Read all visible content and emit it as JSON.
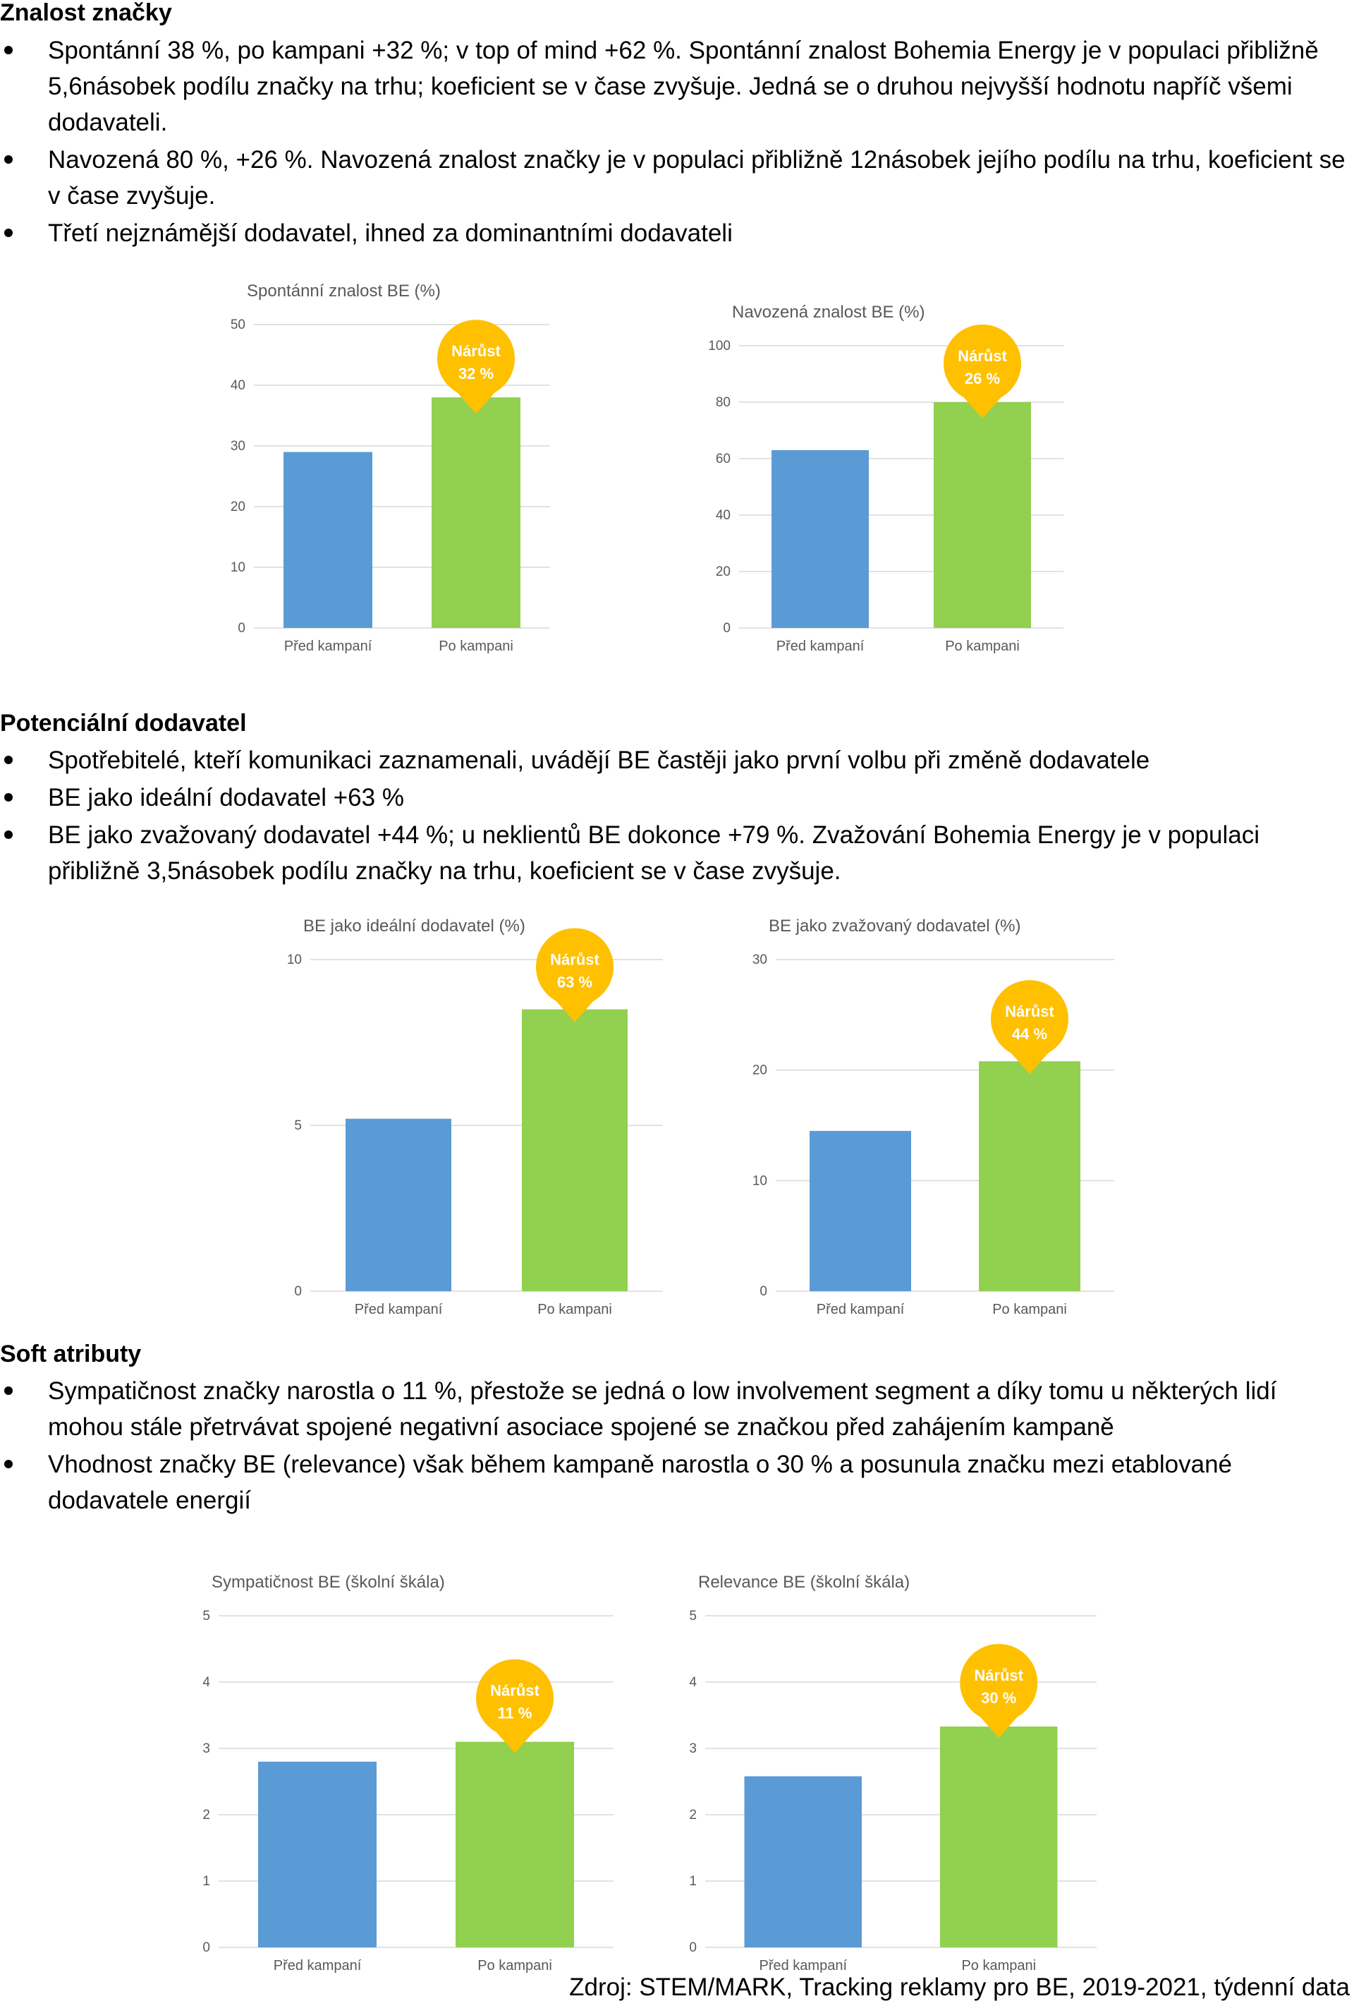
{
  "sections": [
    {
      "title": "Znalost značky",
      "bullets": [
        "Spontánní 38 %, po kampani +32 %; v top of mind +62 %. Spontánní znalost Bohemia Energy je v populaci přibližně 5,6násobek podílu značky na trhu; koeficient se v čase zvyšuje. Jedná se o druhou nejvyšší hodnotu napříč všemi dodavateli.",
        "Navozená 80 %, +26 %. Navozená znalost značky je v populaci přibližně 12násobek jejího podílu na trhu, koeficient se v čase zvyšuje.",
        "Třetí nejznámější dodavatel, ihned za dominantními dodavateli"
      ]
    },
    {
      "title": "Potenciální dodavatel",
      "bullets": [
        "Spotřebitelé, kteří komunikaci zaznamenali, uvádějí BE častěji jako první volbu při změně dodavatele",
        "BE jako ideální dodavatel +63 %",
        "BE jako zvažovaný dodavatel +44 %; u neklientů BE dokonce +79 %. Zvažování Bohemia Energy je v populaci přibližně 3,5násobek podílu značky na trhu, koeficient se v čase zvyšuje."
      ]
    },
    {
      "title": "Soft atributy",
      "bullets": [
        "Sympatičnost značky narostla o 11 %, přestože se jedná o low involvement segment a díky tomu u některých lidí mohou stále přetrvávat spojené negativní asociace spojené se značkou před zahájením kampaně",
        "Vhodnost značky BE (relevance) však během kampaně narostla o 30 % a posunula značku mezi etablované dodavatele energií"
      ]
    }
  ],
  "colors": {
    "before": "#5b9bd5",
    "after": "#92d050",
    "badge": "#ffc000",
    "grid": "#d9d9d9"
  },
  "chart_data": [
    {
      "type": "bar",
      "title": "Spontánní znalost BE (%)",
      "categories": [
        "Před kampaní",
        "Po kampani"
      ],
      "values": [
        29,
        38
      ],
      "ylim": [
        0,
        50
      ],
      "yticks": [
        "0",
        "10",
        "20",
        "30",
        "40",
        "50"
      ],
      "badge": [
        "Nárůst",
        "32 %"
      ]
    },
    {
      "type": "bar",
      "title": "Navozená znalost BE (%)",
      "categories": [
        "Před kampaní",
        "Po kampani"
      ],
      "values": [
        63,
        80
      ],
      "ylim": [
        0,
        100
      ],
      "yticks": [
        "0",
        "20",
        "40",
        "60",
        "80",
        "100"
      ],
      "badge": [
        "Nárůst",
        "26 %"
      ]
    },
    {
      "type": "bar",
      "title": "BE jako ideální dodavatel (%)",
      "categories": [
        "Před kampaní",
        "Po kampani"
      ],
      "values": [
        5.2,
        8.5
      ],
      "ylim": [
        0,
        10
      ],
      "yticks": [
        "0",
        "5",
        "10"
      ],
      "badge": [
        "Nárůst",
        "63 %"
      ]
    },
    {
      "type": "bar",
      "title": "BE jako zvažovaný dodavatel (%)",
      "categories": [
        "Před kampaní",
        "Po kampani"
      ],
      "values": [
        14.5,
        20.8
      ],
      "ylim": [
        0,
        30
      ],
      "yticks": [
        "0",
        "10",
        "20",
        "30"
      ],
      "badge": [
        "Nárůst",
        "44 %"
      ]
    },
    {
      "type": "bar",
      "title": "Sympatičnost BE (školní škála)",
      "categories": [
        "Před kampaní",
        "Po kampani"
      ],
      "values": [
        2.8,
        3.1
      ],
      "ylim": [
        0,
        5
      ],
      "yticks": [
        "0",
        "1",
        "2",
        "3",
        "4",
        "5"
      ],
      "badge": [
        "Nárůst",
        "11 %"
      ]
    },
    {
      "type": "bar",
      "title": "Relevance BE (školní škála)",
      "categories": [
        "Před kampaní",
        "Po kampani"
      ],
      "values": [
        2.58,
        3.33
      ],
      "ylim": [
        0,
        5
      ],
      "yticks": [
        "0",
        "1",
        "2",
        "3",
        "4",
        "5"
      ],
      "badge": [
        "Nárůst",
        "30 %"
      ]
    }
  ],
  "source": "Zdroj: STEM/MARK, Tracking reklamy pro BE, 2019-2021, týdenní data"
}
